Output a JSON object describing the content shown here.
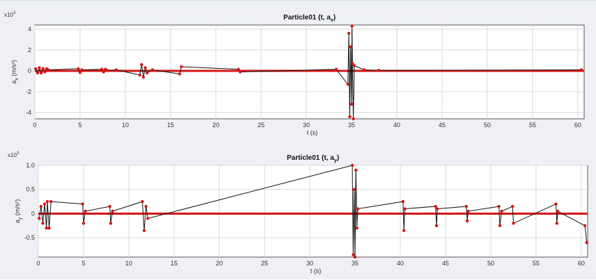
{
  "chart_data": [
    {
      "type": "line",
      "title": "Particle01 (t, a",
      "title_sub": "x",
      "title_end": ")",
      "ylabel": "a",
      "ylabel_sub": "x",
      "ylabel_unit": "(m/s²)",
      "xlabel": "t (s)",
      "y_exponent": "x10",
      "y_exponent_power": "3",
      "xlim": [
        0,
        60.7
      ],
      "ylim": [
        -4.6,
        4.4
      ],
      "x_ticks": [
        0,
        5,
        10,
        15,
        20,
        25,
        30,
        35,
        40,
        45,
        50,
        55,
        60
      ],
      "y_ticks": [
        -4,
        -2,
        0,
        2,
        4
      ],
      "grid": true,
      "colors": {
        "line": "#111111",
        "marker": "#d41616"
      },
      "series": [
        {
          "x": [
            0.1,
            0.3,
            0.5,
            0.7,
            0.9,
            1.1,
            1.3,
            1.5,
            4.8,
            5.0,
            5.2,
            7.4,
            7.6,
            7.8,
            8.0,
            9.0,
            11.6,
            11.8,
            12.0,
            12.2,
            12.4,
            13.0,
            16.0,
            16.2,
            22.5,
            22.7,
            33.3,
            34.6,
            34.7,
            34.8,
            34.9,
            35.0,
            35.05,
            35.1,
            35.2,
            35.3,
            36.4,
            38.0,
            60.4
          ],
          "y": [
            0.2,
            -0.2,
            0.3,
            -0.2,
            0.2,
            -0.1,
            0.2,
            0.1,
            0.2,
            -0.15,
            0.1,
            0.15,
            -0.1,
            0.15,
            0.05,
            0.1,
            -0.4,
            0.6,
            -0.6,
            0.3,
            -0.2,
            0.1,
            -0.3,
            0.4,
            0.15,
            -0.1,
            0.15,
            -1.3,
            3.6,
            -4.4,
            2.3,
            -3.2,
            4.3,
            0.7,
            -4.6,
            0.5,
            0.1,
            0.05,
            0.1
          ]
        }
      ]
    },
    {
      "type": "line",
      "title": "Particle01 (t, a",
      "title_sub": "y",
      "title_end": ")",
      "ylabel": "a",
      "ylabel_sub": "y",
      "ylabel_unit": "(m/s²)",
      "xlabel": "t (s)",
      "y_exponent": "x10",
      "y_exponent_power": "3",
      "xlim": [
        0,
        60.7
      ],
      "ylim": [
        -0.9,
        1.0
      ],
      "x_ticks": [
        0,
        5,
        10,
        15,
        20,
        25,
        30,
        35,
        40,
        45,
        50,
        55,
        60
      ],
      "y_ticks": [
        -0.5,
        0,
        0.5,
        1.0
      ],
      "y_tick_labels": [
        "-0.5",
        "0",
        "0.5",
        "1.0"
      ],
      "grid": true,
      "colors": {
        "line": "#111111",
        "marker": "#d41616"
      },
      "series": [
        {
          "x": [
            0.1,
            0.3,
            0.5,
            0.7,
            0.9,
            1.0,
            1.2,
            1.4,
            4.9,
            5.0,
            5.2,
            7.9,
            8.0,
            8.2,
            11.5,
            11.7,
            11.9,
            12.1,
            34.7,
            34.8,
            34.9,
            35.0,
            35.1,
            35.2,
            35.3,
            40.3,
            40.4,
            40.5,
            43.9,
            44.0,
            44.1,
            47.3,
            47.4,
            47.5,
            50.9,
            51.0,
            51.2,
            52.4,
            52.5,
            57.2,
            57.3,
            57.4,
            60.4,
            60.6
          ],
          "y": [
            -0.1,
            0.15,
            -0.2,
            0.2,
            -0.3,
            0.25,
            -0.3,
            0.25,
            0.2,
            -0.2,
            0.05,
            0.15,
            -0.2,
            0.05,
            0.25,
            -0.35,
            0.15,
            -0.1,
            1.0,
            -0.85,
            0.5,
            -0.9,
            0.9,
            -0.3,
            0.1,
            0.25,
            -0.35,
            0.1,
            0.15,
            -0.25,
            0.1,
            0.15,
            -0.15,
            0.05,
            0.15,
            -0.25,
            0.05,
            0.15,
            -0.2,
            0.2,
            -0.2,
            0.05,
            -0.25,
            -0.6
          ]
        }
      ]
    }
  ]
}
